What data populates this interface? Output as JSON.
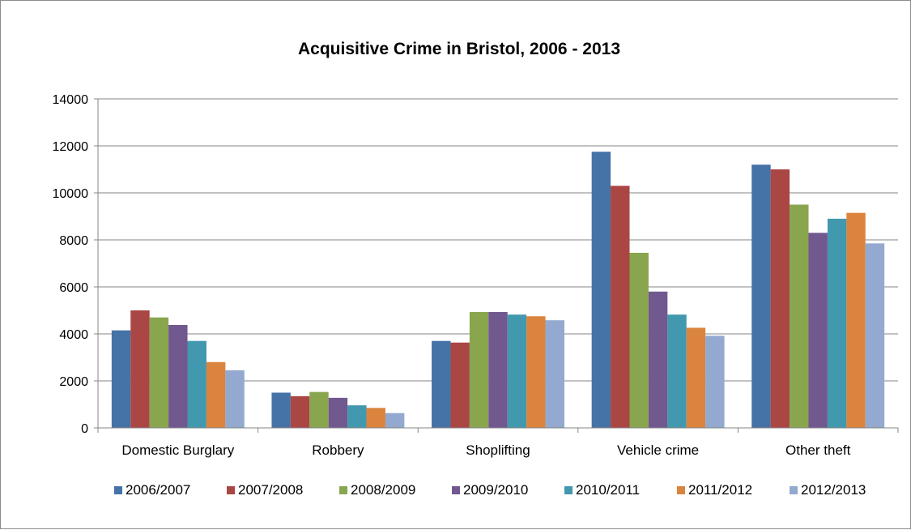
{
  "chart_data": {
    "type": "bar",
    "title": "Acquisitive Crime in Bristol, 2006 - 2013",
    "xlabel": "",
    "ylabel": "",
    "ylim": [
      0,
      14000
    ],
    "yticks": [
      0,
      2000,
      4000,
      6000,
      8000,
      10000,
      12000,
      14000
    ],
    "grid": true,
    "legend_position": "bottom",
    "categories": [
      "Domestic Burglary",
      "Robbery",
      "Shoplifting",
      "Vehicle crime",
      "Other theft"
    ],
    "series": [
      {
        "name": "2006/2007",
        "color": "#4572a7",
        "values": [
          4150,
          1500,
          3700,
          11750,
          11200
        ]
      },
      {
        "name": "2007/2008",
        "color": "#aa4643",
        "values": [
          5000,
          1350,
          3630,
          10300,
          11000
        ]
      },
      {
        "name": "2008/2009",
        "color": "#89a54e",
        "values": [
          4700,
          1530,
          4930,
          7450,
          9500
        ]
      },
      {
        "name": "2009/2010",
        "color": "#71588f",
        "values": [
          4380,
          1280,
          4930,
          5800,
          8300
        ]
      },
      {
        "name": "2010/2011",
        "color": "#4198af",
        "values": [
          3700,
          960,
          4820,
          4820,
          8900
        ]
      },
      {
        "name": "2011/2012",
        "color": "#db843d",
        "values": [
          2800,
          850,
          4750,
          4260,
          9150
        ]
      },
      {
        "name": "2012/2013",
        "color": "#93a9cf",
        "values": [
          2450,
          630,
          4580,
          3920,
          7850
        ]
      }
    ]
  }
}
